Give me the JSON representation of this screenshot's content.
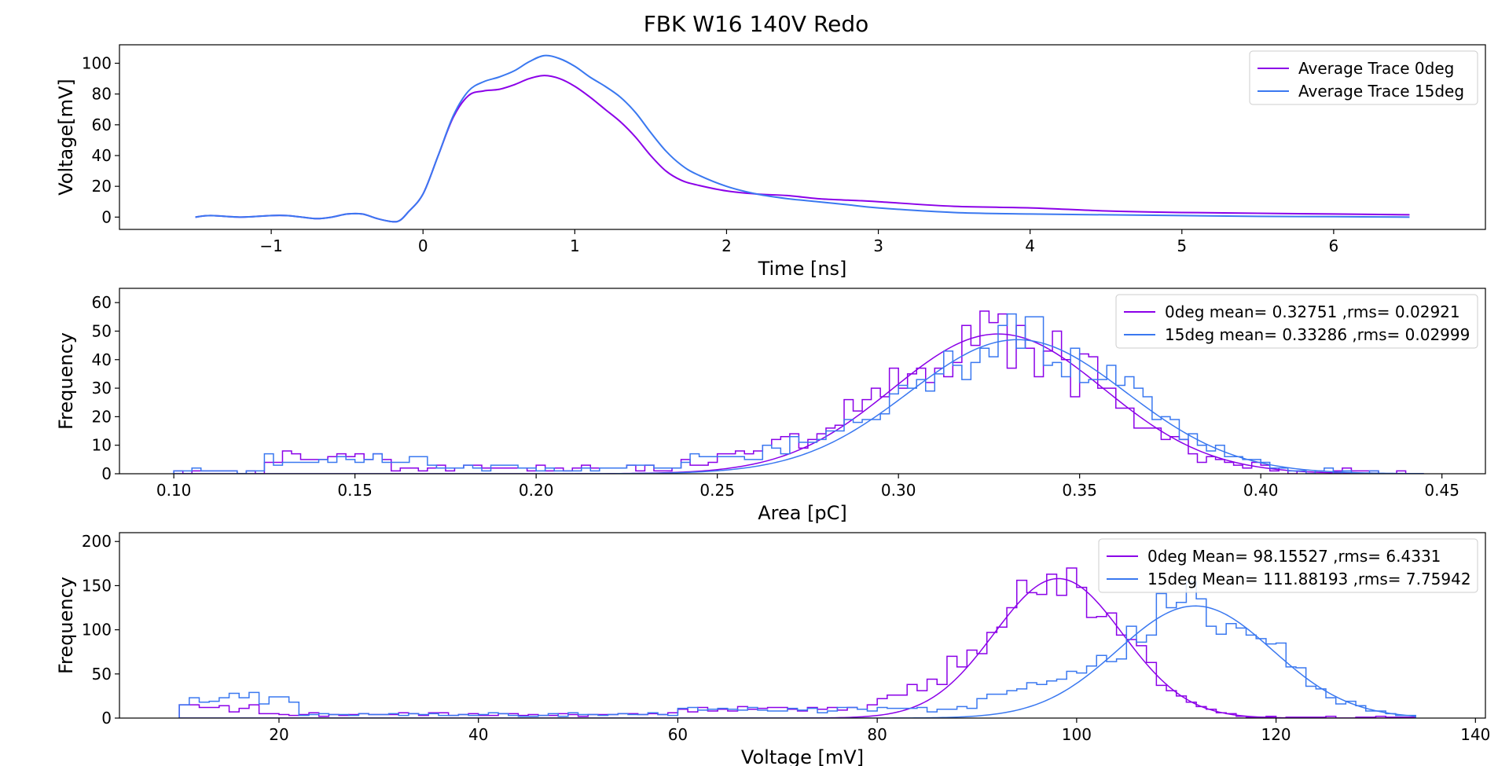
{
  "figure_title": "FBK W16 140V Redo",
  "colors": {
    "series_0deg": "#8b00e8",
    "series_15deg": "#3a78f0",
    "axis": "#000000"
  },
  "chart_data": [
    {
      "type": "line",
      "xlabel": "Time [ns]",
      "ylabel": "Voltage[mV]",
      "xlim": [
        -2.0,
        7.0
      ],
      "ylim": [
        -8,
        112
      ],
      "xticks": [
        -1,
        0,
        1,
        2,
        3,
        4,
        5,
        6
      ],
      "xtick_labels": [
        "−1",
        "0",
        "1",
        "2",
        "3",
        "4",
        "5",
        "6"
      ],
      "yticks": [
        0,
        20,
        40,
        60,
        80,
        100
      ],
      "grid": false,
      "legend_position": "top-right",
      "series": [
        {
          "name": "Average Trace 0deg",
          "x": [
            -1.5,
            -1.4,
            -1.2,
            -1.0,
            -0.9,
            -0.8,
            -0.7,
            -0.6,
            -0.5,
            -0.4,
            -0.3,
            -0.2,
            -0.15,
            -0.1,
            0.0,
            0.1,
            0.2,
            0.3,
            0.4,
            0.5,
            0.6,
            0.7,
            0.8,
            0.9,
            1.0,
            1.1,
            1.2,
            1.3,
            1.4,
            1.5,
            1.6,
            1.7,
            1.8,
            2.0,
            2.2,
            2.4,
            2.6,
            2.8,
            3.0,
            3.5,
            4.0,
            4.5,
            5.0,
            5.5,
            6.0,
            6.5
          ],
          "y": [
            0,
            1,
            0,
            1,
            1,
            0,
            -1,
            0,
            2,
            2,
            -1,
            -3,
            -2,
            3,
            15,
            40,
            65,
            79,
            82,
            83,
            86,
            90,
            92,
            90,
            85,
            78,
            70,
            62,
            52,
            40,
            30,
            24,
            21,
            17,
            15,
            14,
            12,
            11,
            10,
            7,
            6,
            4,
            3,
            2.5,
            2,
            1.5
          ]
        },
        {
          "name": "Average Trace 15deg",
          "x": [
            -1.5,
            -1.4,
            -1.2,
            -1.0,
            -0.9,
            -0.8,
            -0.7,
            -0.6,
            -0.5,
            -0.4,
            -0.3,
            -0.2,
            -0.15,
            -0.1,
            0.0,
            0.1,
            0.2,
            0.3,
            0.4,
            0.5,
            0.6,
            0.7,
            0.8,
            0.9,
            1.0,
            1.1,
            1.2,
            1.3,
            1.4,
            1.5,
            1.6,
            1.7,
            1.8,
            2.0,
            2.2,
            2.4,
            2.6,
            2.8,
            3.0,
            3.5,
            4.0,
            4.5,
            5.0,
            5.5,
            6.0,
            6.5
          ],
          "y": [
            0,
            1,
            0,
            1,
            1,
            0,
            -1,
            0,
            2,
            2,
            -1,
            -3,
            -2,
            3,
            15,
            40,
            66,
            82,
            88,
            91,
            95,
            101,
            105,
            103,
            98,
            91,
            85,
            78,
            68,
            55,
            43,
            34,
            28,
            20,
            15,
            12,
            10,
            8,
            6,
            3,
            2,
            1.5,
            1,
            0.5,
            0.3,
            0
          ]
        }
      ]
    },
    {
      "type": "histogram",
      "xlabel": "Area [pC]",
      "ylabel": "Frequency",
      "xlim": [
        0.085,
        0.462
      ],
      "ylim": [
        0,
        65
      ],
      "xticks": [
        0.1,
        0.15,
        0.2,
        0.25,
        0.3,
        0.35,
        0.4,
        0.45
      ],
      "xtick_labels": [
        "0.10",
        "0.15",
        "0.20",
        "0.25",
        "0.30",
        "0.35",
        "0.40",
        "0.45"
      ],
      "yticks": [
        0,
        10,
        20,
        30,
        40,
        50,
        60
      ],
      "grid": false,
      "legend_position": "top-right",
      "bins": {
        "start": 0.1,
        "width": 0.0025,
        "count": 138
      },
      "series": [
        {
          "name": "0deg mean= 0.32751 ,rms= 0.02921",
          "gauss": {
            "amplitude": 49,
            "mean": 0.32751,
            "sigma": 0.02921
          },
          "background": [
            {
              "from": 0.1,
              "to": 0.125,
              "level": 1
            },
            {
              "from": 0.125,
              "to": 0.16,
              "level": 6
            },
            {
              "from": 0.16,
              "to": 0.18,
              "level": 2
            },
            {
              "from": 0.18,
              "to": 0.24,
              "level": 2
            },
            {
              "from": 0.24,
              "to": 0.29,
              "level": 4
            }
          ]
        },
        {
          "name": "15deg mean= 0.33286 ,rms= 0.02999",
          "gauss": {
            "amplitude": 47,
            "mean": 0.33286,
            "sigma": 0.02999
          },
          "background": [
            {
              "from": 0.1,
              "to": 0.125,
              "level": 1
            },
            {
              "from": 0.125,
              "to": 0.17,
              "level": 5
            },
            {
              "from": 0.17,
              "to": 0.18,
              "level": 2
            },
            {
              "from": 0.18,
              "to": 0.24,
              "level": 2
            },
            {
              "from": 0.24,
              "to": 0.29,
              "level": 4
            }
          ]
        }
      ]
    },
    {
      "type": "histogram",
      "xlabel": "Voltage [mV]",
      "ylabel": "Frequency",
      "xlim": [
        4,
        141
      ],
      "ylim": [
        0,
        210
      ],
      "xticks": [
        20,
        40,
        60,
        80,
        100,
        120,
        140
      ],
      "xtick_labels": [
        "20",
        "40",
        "60",
        "80",
        "100",
        "120",
        "140"
      ],
      "yticks": [
        0,
        50,
        100,
        150,
        200
      ],
      "grid": false,
      "legend_position": "top-right",
      "bins": {
        "start": 10,
        "width": 1.0,
        "count": 124
      },
      "series": [
        {
          "name": "0deg Mean= 98.15527 ,rms= 6.4331",
          "gauss": {
            "amplitude": 158,
            "mean": 98.15527,
            "sigma": 6.4331
          },
          "background": [
            {
              "from": 10,
              "to": 18,
              "level": 12
            },
            {
              "from": 18,
              "to": 60,
              "level": 4
            },
            {
              "from": 60,
              "to": 80,
              "level": 10
            },
            {
              "from": 80,
              "to": 90,
              "level": 18
            }
          ]
        },
        {
          "name": "15deg Mean= 111.88193 ,rms= 7.75942",
          "gauss": {
            "amplitude": 127,
            "mean": 111.88193,
            "sigma": 7.75942
          },
          "background": [
            {
              "from": 10,
              "to": 22,
              "level": 22
            },
            {
              "from": 22,
              "to": 60,
              "level": 4
            },
            {
              "from": 60,
              "to": 90,
              "level": 10
            },
            {
              "from": 90,
              "to": 100,
              "level": 22
            }
          ]
        }
      ]
    }
  ]
}
